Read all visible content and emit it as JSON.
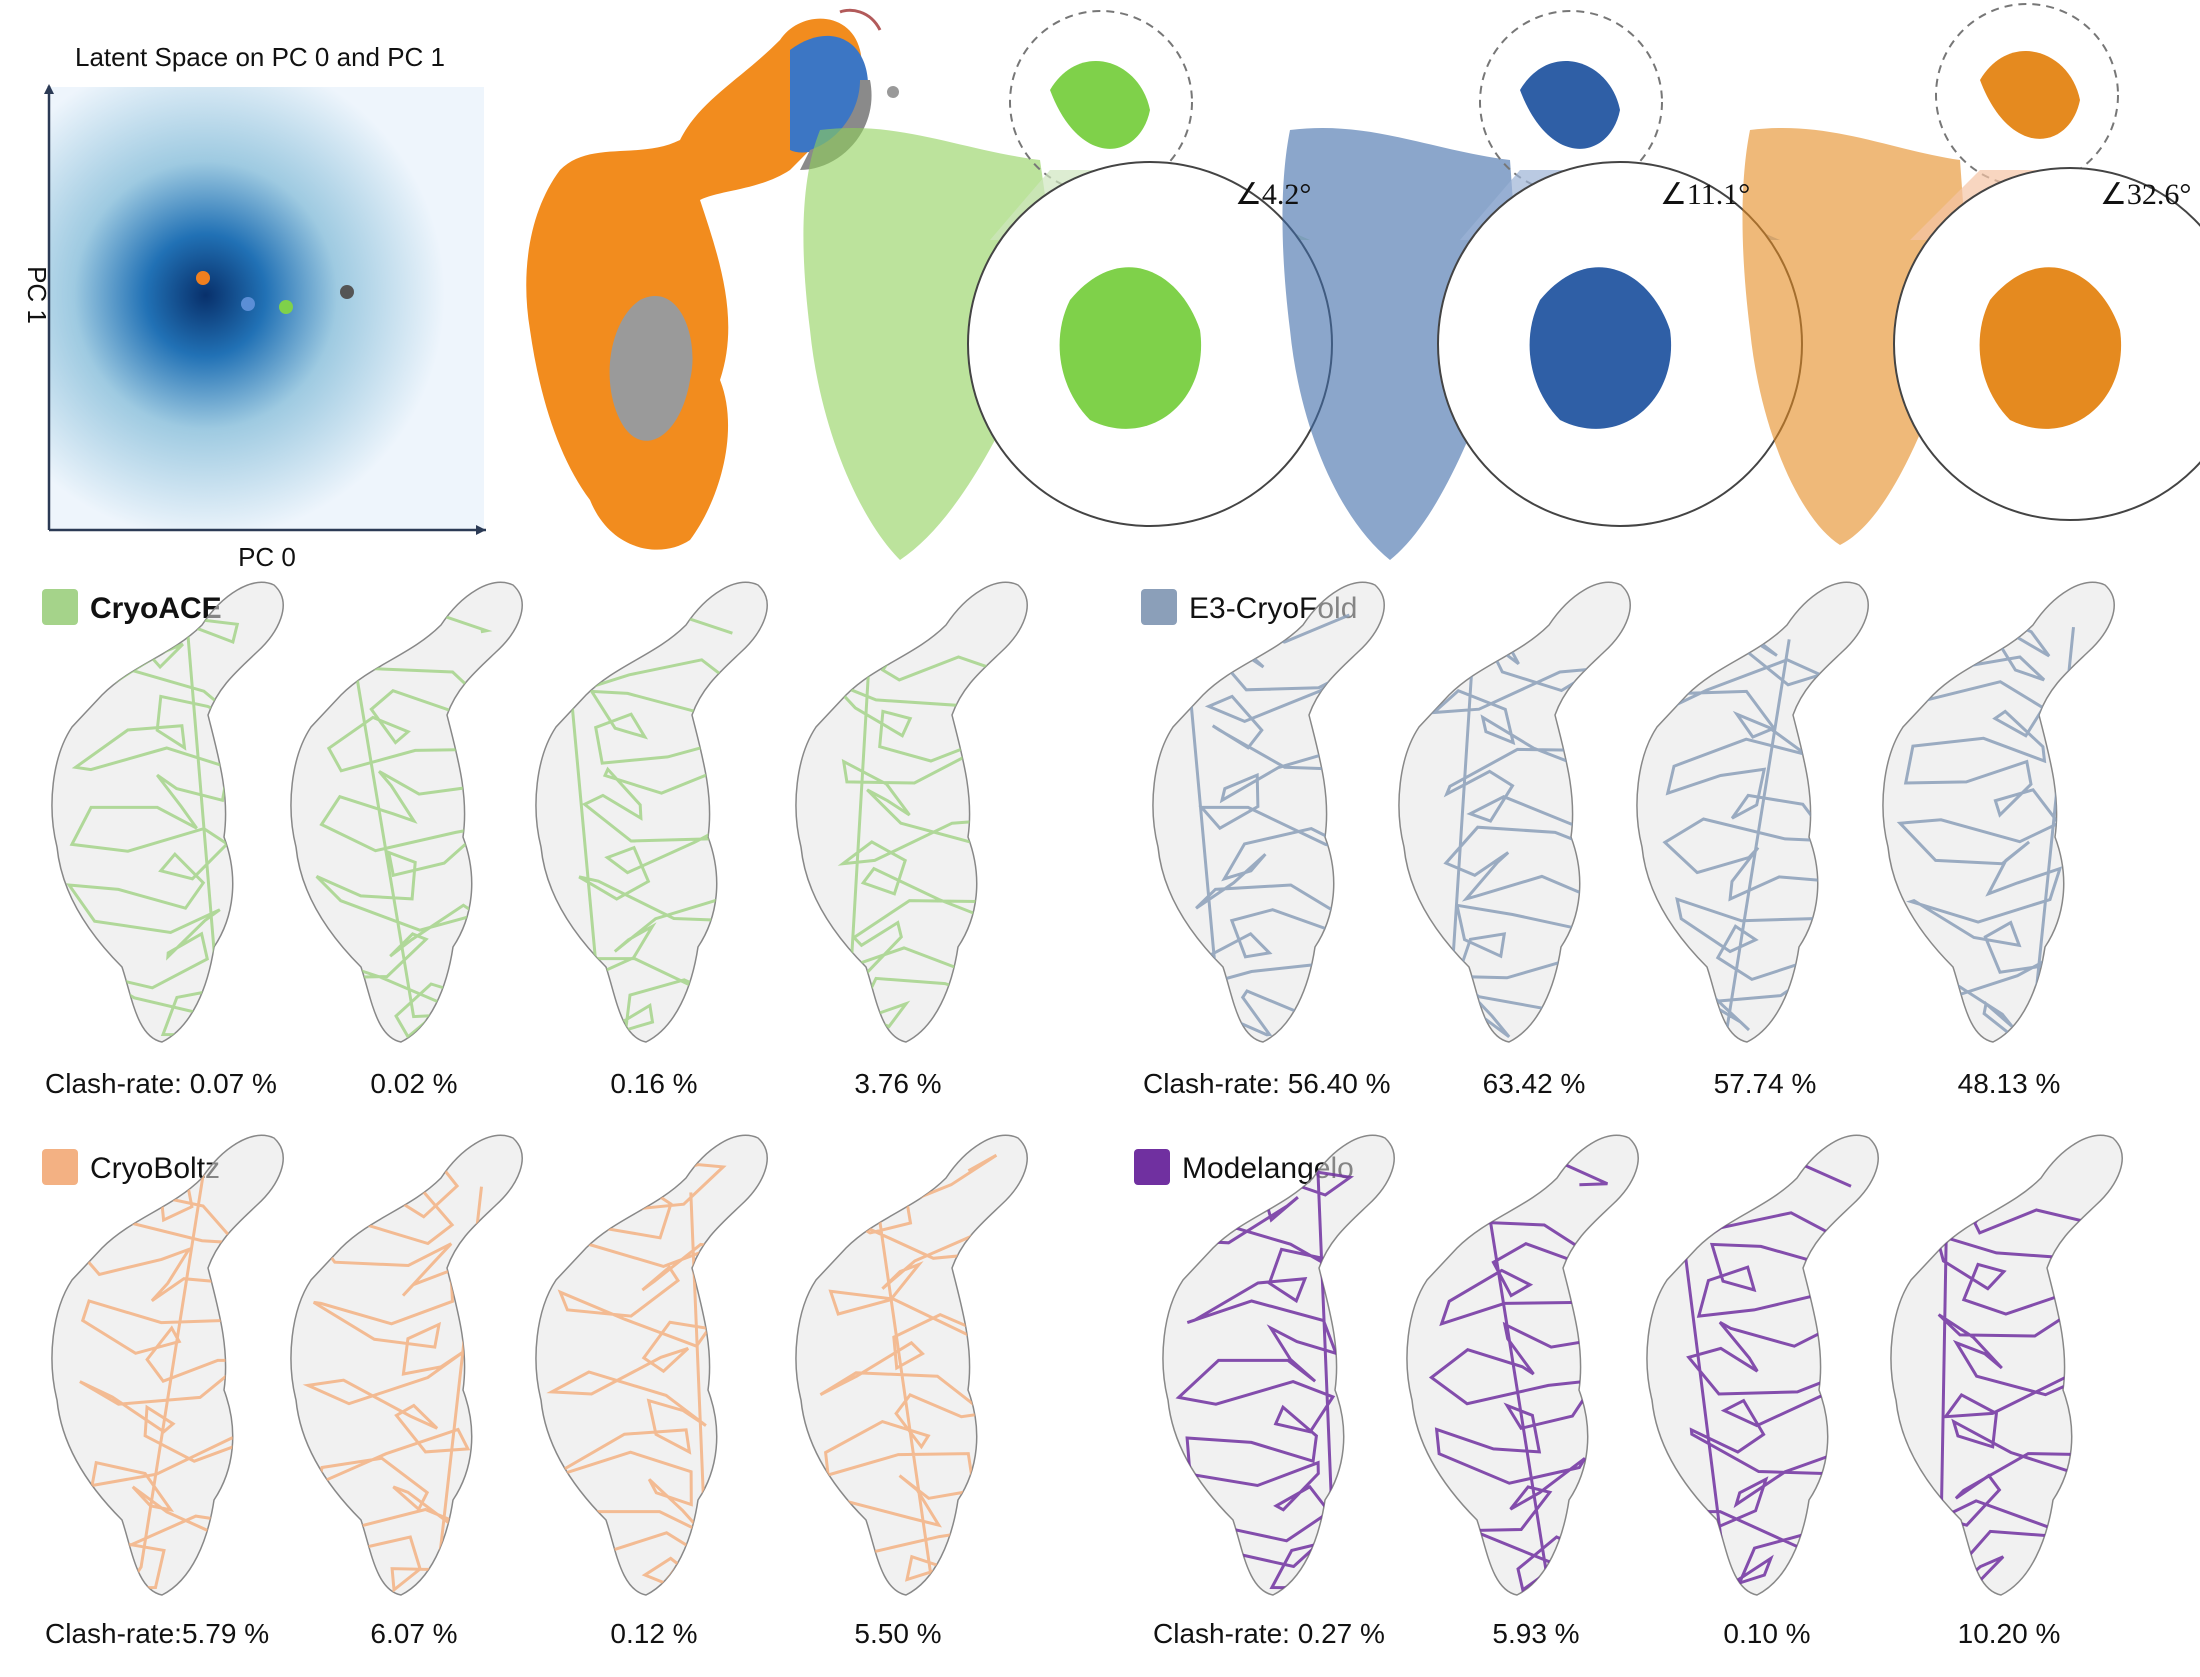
{
  "latent_plot": {
    "title": "Latent Space on PC 0 and PC 1",
    "x_label": "PC 0",
    "y_label": "PC 1"
  },
  "angles": [
    "∠4.2°",
    "∠11.1°",
    "∠32.6°"
  ],
  "methods": [
    {
      "name": "CryoACE",
      "color": "#a5d38a",
      "clash_rates": [
        "Clash-rate: 0.07 %",
        "0.02 %",
        "0.16 %",
        "3.76 %"
      ]
    },
    {
      "name": "E3-CryoFold",
      "color": "#8b9fb9",
      "clash_rates": [
        "Clash-rate: 56.40 %",
        "63.42 %",
        "57.74 %",
        "48.13 %"
      ]
    },
    {
      "name": "CryoBoltz",
      "color": "#f3b183",
      "clash_rates": [
        "Clash-rate:5.79 %",
        "6.07 %",
        "0.12 %",
        "5.50 %"
      ]
    },
    {
      "name": "Modelangelo",
      "color": "#7030a0",
      "clash_rates": [
        "Clash-rate: 0.27 %",
        "5.93 %",
        "0.10 %",
        "10.20 %"
      ]
    }
  ]
}
